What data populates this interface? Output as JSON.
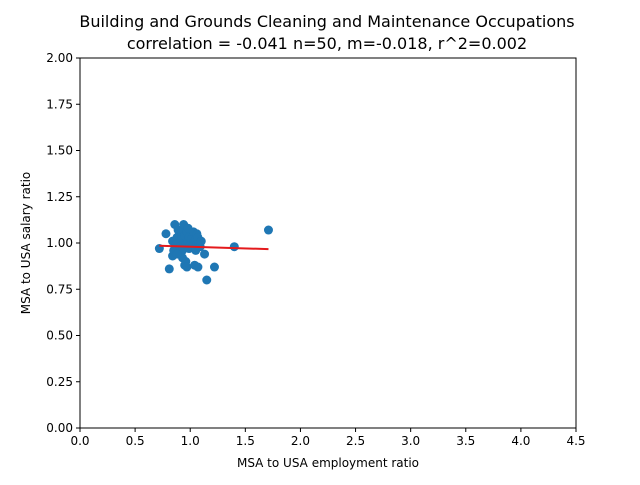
{
  "chart_data": {
    "type": "scatter",
    "title": "Building and Grounds Cleaning and Maintenance Occupations",
    "subtitle": "correlation = -0.041 n=50, m=-0.018, r^2=0.002",
    "xlabel": "MSA to USA employment ratio",
    "ylabel": "MSA to USA salary ratio",
    "xlim": [
      0.0,
      4.5
    ],
    "ylim": [
      0.0,
      2.0
    ],
    "xticks": [
      "0.0",
      "0.5",
      "1.0",
      "1.5",
      "2.0",
      "2.5",
      "3.0",
      "3.5",
      "4.0",
      "4.5"
    ],
    "yticks": [
      "0.00",
      "0.25",
      "0.50",
      "0.75",
      "1.00",
      "1.25",
      "1.50",
      "1.75",
      "2.00"
    ],
    "grid": false,
    "colors": {
      "points": "#1f77b4",
      "fit_line": "#e41a1c",
      "axes": "#000000"
    },
    "points": [
      {
        "x": 0.72,
        "y": 0.97
      },
      {
        "x": 0.78,
        "y": 1.05
      },
      {
        "x": 0.81,
        "y": 0.86
      },
      {
        "x": 0.84,
        "y": 0.93
      },
      {
        "x": 0.84,
        "y": 1.01
      },
      {
        "x": 0.85,
        "y": 0.96
      },
      {
        "x": 0.86,
        "y": 1.1
      },
      {
        "x": 0.87,
        "y": 0.99
      },
      {
        "x": 0.88,
        "y": 1.03
      },
      {
        "x": 0.89,
        "y": 1.07
      },
      {
        "x": 0.9,
        "y": 0.95
      },
      {
        "x": 0.9,
        "y": 1.0
      },
      {
        "x": 0.91,
        "y": 0.98
      },
      {
        "x": 0.92,
        "y": 1.06
      },
      {
        "x": 0.92,
        "y": 1.02
      },
      {
        "x": 0.93,
        "y": 0.96
      },
      {
        "x": 0.93,
        "y": 0.92
      },
      {
        "x": 0.94,
        "y": 1.1
      },
      {
        "x": 0.94,
        "y": 1.0
      },
      {
        "x": 0.95,
        "y": 0.88
      },
      {
        "x": 0.95,
        "y": 1.04
      },
      {
        "x": 0.96,
        "y": 0.9
      },
      {
        "x": 0.96,
        "y": 0.99
      },
      {
        "x": 0.97,
        "y": 1.06
      },
      {
        "x": 0.97,
        "y": 0.87
      },
      {
        "x": 0.98,
        "y": 1.01
      },
      {
        "x": 0.99,
        "y": 0.97
      },
      {
        "x": 0.99,
        "y": 1.03
      },
      {
        "x": 1.0,
        "y": 0.99
      },
      {
        "x": 1.01,
        "y": 1.02
      },
      {
        "x": 1.02,
        "y": 0.98
      },
      {
        "x": 1.03,
        "y": 1.06
      },
      {
        "x": 1.03,
        "y": 1.0
      },
      {
        "x": 1.04,
        "y": 0.88
      },
      {
        "x": 1.05,
        "y": 0.96
      },
      {
        "x": 1.05,
        "y": 1.02
      },
      {
        "x": 1.06,
        "y": 1.05
      },
      {
        "x": 1.06,
        "y": 0.99
      },
      {
        "x": 1.07,
        "y": 0.87
      },
      {
        "x": 1.07,
        "y": 1.03
      },
      {
        "x": 1.08,
        "y": 1.0
      },
      {
        "x": 1.09,
        "y": 0.98
      },
      {
        "x": 1.1,
        "y": 1.01
      },
      {
        "x": 1.13,
        "y": 0.94
      },
      {
        "x": 1.15,
        "y": 0.8
      },
      {
        "x": 1.22,
        "y": 0.87
      },
      {
        "x": 1.4,
        "y": 0.98
      },
      {
        "x": 1.71,
        "y": 1.07
      },
      {
        "x": 0.98,
        "y": 1.08
      },
      {
        "x": 0.88,
        "y": 0.94
      }
    ],
    "fit_line": {
      "x": [
        0.72,
        1.71
      ],
      "y": [
        0.985,
        0.967
      ]
    }
  }
}
